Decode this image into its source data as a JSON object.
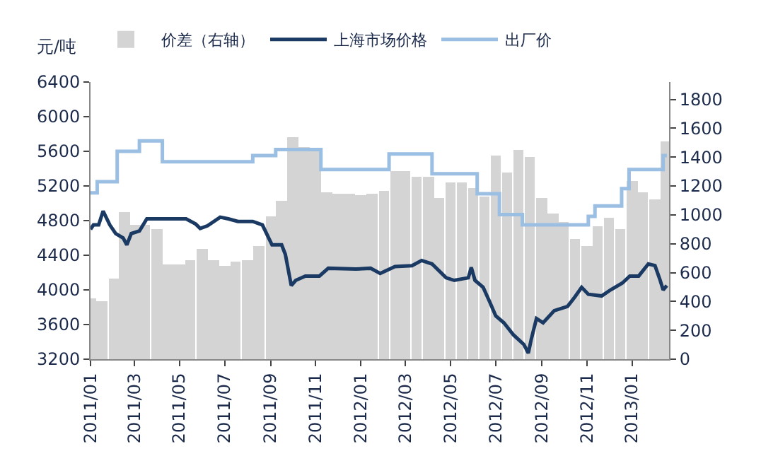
{
  "chart_data": {
    "type": "line",
    "ylabel": "元/吨",
    "legend": "top",
    "xlim": [
      "2011-01-01",
      "2013-02-20"
    ],
    "xticks": [
      {
        "value": "2011-01-01",
        "label": "2011/01"
      },
      {
        "value": "2011-03-01",
        "label": "2011/03"
      },
      {
        "value": "2011-05-01",
        "label": "2011/05"
      },
      {
        "value": "2011-07-01",
        "label": "2011/07"
      },
      {
        "value": "2011-09-01",
        "label": "2011/09"
      },
      {
        "value": "2011-11-01",
        "label": "2011/11"
      },
      {
        "value": "2012-01-01",
        "label": "2012/01"
      },
      {
        "value": "2012-03-01",
        "label": "2012/03"
      },
      {
        "value": "2012-05-01",
        "label": "2012/05"
      },
      {
        "value": "2012-07-01",
        "label": "2012/07"
      },
      {
        "value": "2012-09-01",
        "label": "2012/09"
      },
      {
        "value": "2012-11-01",
        "label": "2012/11"
      },
      {
        "value": "2013-01-01",
        "label": "2013/01"
      }
    ],
    "ylim": [
      3200,
      6400
    ],
    "yticks": [
      3200,
      3600,
      4000,
      4400,
      4800,
      5200,
      5600,
      6000,
      6400
    ],
    "y2lim": [
      0,
      1920
    ],
    "y2ticks": [
      0,
      200,
      400,
      600,
      800,
      1000,
      1200,
      1400,
      1600,
      1800
    ],
    "series": [
      {
        "name": "价差（右轴）",
        "type": "bar",
        "axis": "y2",
        "color": "#d4d4d4",
        "x": [
          "2011-01-01",
          "2011-01-16",
          "2011-02-01",
          "2011-02-16",
          "2011-03-01",
          "2011-03-16",
          "2011-04-01",
          "2011-04-16",
          "2011-05-01",
          "2011-05-16",
          "2011-06-01",
          "2011-06-16",
          "2011-07-01",
          "2011-07-16",
          "2011-08-01",
          "2011-08-16",
          "2011-09-01",
          "2011-09-16",
          "2011-10-01",
          "2011-10-16",
          "2011-11-01",
          "2011-11-16",
          "2011-12-01",
          "2011-12-16",
          "2012-01-01",
          "2012-01-16",
          "2012-02-01",
          "2012-02-16",
          "2012-03-01",
          "2012-03-16",
          "2012-04-01",
          "2012-04-16",
          "2012-05-01",
          "2012-05-16",
          "2012-06-01",
          "2012-06-16",
          "2012-07-01",
          "2012-07-16",
          "2012-08-01",
          "2012-08-16",
          "2012-09-01",
          "2012-09-16",
          "2012-10-01",
          "2012-10-16",
          "2012-11-01",
          "2012-11-16",
          "2012-12-01",
          "2012-12-16",
          "2013-01-01",
          "2013-01-16",
          "2013-02-01",
          "2013-02-16"
        ],
        "values": [
          420,
          400,
          560,
          1020,
          930,
          930,
          900,
          660,
          660,
          690,
          760,
          690,
          650,
          680,
          690,
          780,
          990,
          1100,
          1540,
          1470,
          1460,
          1160,
          1150,
          1150,
          1140,
          1150,
          1170,
          1300,
          1300,
          1260,
          1260,
          1120,
          1220,
          1220,
          1190,
          1130,
          1410,
          1290,
          1450,
          1400,
          1120,
          1010,
          950,
          830,
          780,
          920,
          980,
          900,
          1230,
          1160,
          1110,
          1510
        ]
      },
      {
        "name": "上海市场价格",
        "color": "#1b3a63",
        "x": [
          "2011-01-01",
          "2011-01-05",
          "2011-01-12",
          "2011-01-18",
          "2011-01-27",
          "2011-02-04",
          "2011-02-14",
          "2011-02-19",
          "2011-02-25",
          "2011-03-08",
          "2011-03-18",
          "2011-04-10",
          "2011-05-10",
          "2011-05-23",
          "2011-05-29",
          "2011-06-08",
          "2011-06-25",
          "2011-07-06",
          "2011-07-19",
          "2011-08-08",
          "2011-08-21",
          "2011-09-03",
          "2011-09-16",
          "2011-09-21",
          "2011-09-29",
          "2011-10-05",
          "2011-10-18",
          "2011-11-06",
          "2011-11-18",
          "2011-12-25",
          "2012-01-14",
          "2012-01-27",
          "2012-02-16",
          "2012-03-10",
          "2012-03-23",
          "2012-04-06",
          "2012-04-25",
          "2012-05-06",
          "2012-05-25",
          "2012-05-29",
          "2012-06-03",
          "2012-06-14",
          "2012-06-23",
          "2012-07-01",
          "2012-07-12",
          "2012-07-25",
          "2012-08-08",
          "2012-08-14",
          "2012-08-18",
          "2012-08-25",
          "2012-09-03",
          "2012-09-18",
          "2012-10-06",
          "2012-10-16",
          "2012-10-25",
          "2012-11-03",
          "2012-11-21",
          "2012-12-03",
          "2012-12-19",
          "2012-12-29",
          "2013-01-10",
          "2013-01-23",
          "2013-02-01",
          "2013-02-08",
          "2013-02-12",
          "2013-02-17"
        ],
        "values": [
          4700,
          4750,
          4750,
          4910,
          4750,
          4650,
          4600,
          4520,
          4650,
          4680,
          4820,
          4820,
          4820,
          4760,
          4710,
          4740,
          4840,
          4820,
          4790,
          4790,
          4750,
          4520,
          4520,
          4410,
          4050,
          4110,
          4160,
          4160,
          4250,
          4240,
          4250,
          4190,
          4270,
          4280,
          4340,
          4300,
          4140,
          4110,
          4140,
          4260,
          4110,
          4030,
          3860,
          3700,
          3620,
          3480,
          3370,
          3270,
          3430,
          3670,
          3620,
          3760,
          3810,
          3920,
          4030,
          3950,
          3930,
          4000,
          4080,
          4160,
          4160,
          4300,
          4280,
          4110,
          4000,
          4050
        ]
      },
      {
        "name": "出厂价",
        "type": "step",
        "color": "#9bbfe3",
        "x": [
          "2011-01-01",
          "2011-01-10",
          "2011-02-06",
          "2011-03-08",
          "2011-04-08",
          "2011-08-08",
          "2011-09-08",
          "2011-11-08",
          "2012-02-08",
          "2012-04-06",
          "2012-06-06",
          "2012-07-06",
          "2012-08-06",
          "2012-11-03",
          "2012-11-12",
          "2012-12-18",
          "2012-12-28",
          "2013-02-12",
          "2013-02-17"
        ],
        "values": [
          5120,
          5250,
          5600,
          5720,
          5480,
          5550,
          5620,
          5390,
          5570,
          5340,
          5110,
          4870,
          4750,
          4850,
          4970,
          5170,
          5390,
          5550,
          5550
        ]
      }
    ]
  }
}
